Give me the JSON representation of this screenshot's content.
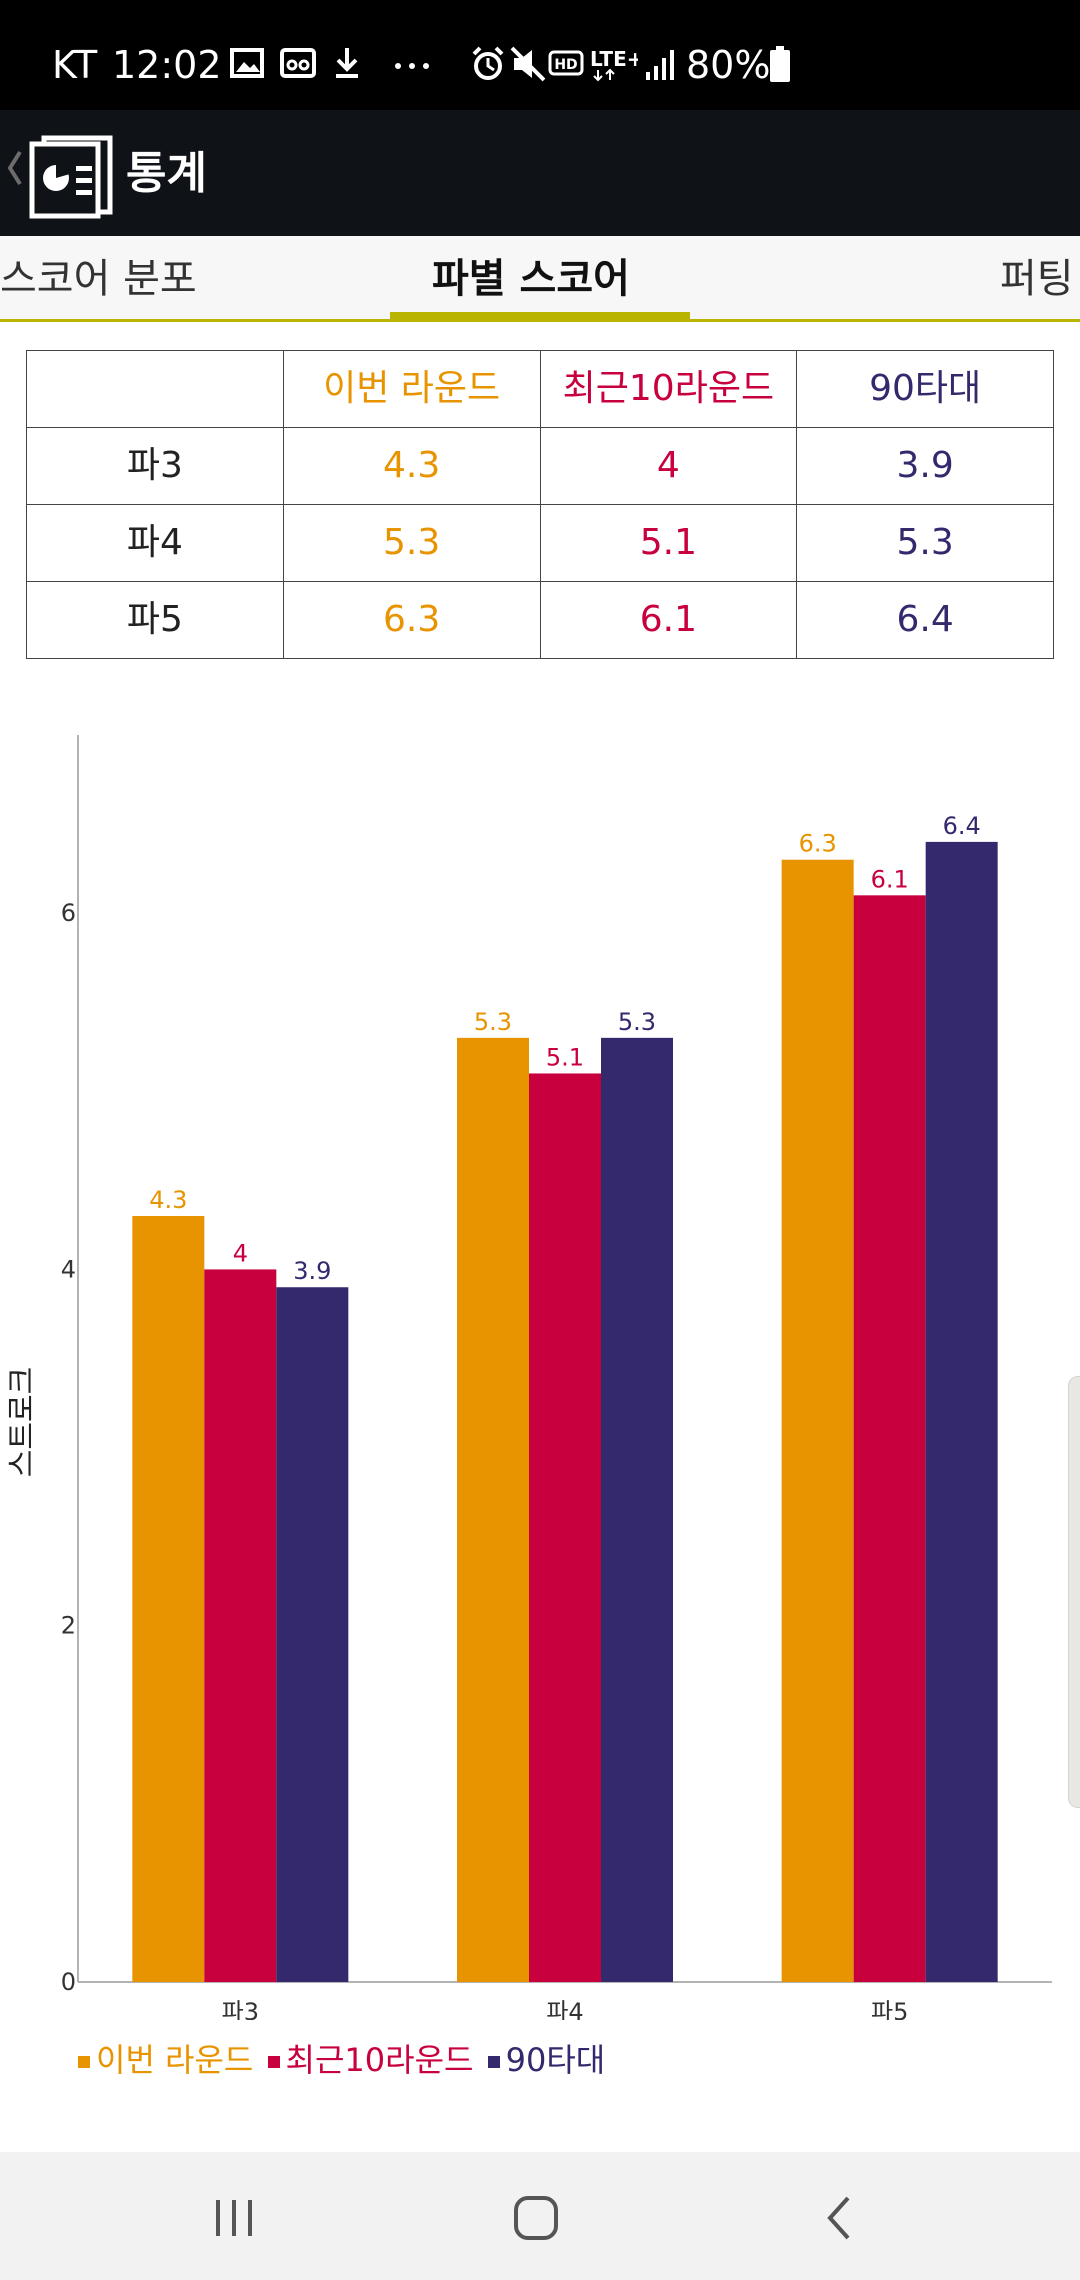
{
  "status_bar": {
    "carrier": "KT",
    "time": "12:02",
    "battery_percent": "80%",
    "icons": [
      "image-icon",
      "voicemail-icon",
      "download-icon",
      "more-dots-icon",
      "alarm-icon",
      "mute-icon",
      "hd-icon",
      "lte-plus-icon",
      "signal-icon",
      "battery-icon"
    ]
  },
  "app_bar": {
    "title": "통계",
    "icons": [
      "back-chevron-icon",
      "statistics-logo-icon"
    ]
  },
  "tabs": [
    {
      "label": "스코어 분포",
      "selected": false
    },
    {
      "label": "파별 스코어",
      "selected": true
    },
    {
      "label": "퍼팅",
      "selected": false
    }
  ],
  "table": {
    "headers": [
      "",
      "이번 라운드",
      "최근10라운드",
      "90타대"
    ],
    "rows": [
      {
        "label": "파3",
        "this_round": "4.3",
        "recent10": "4",
        "ninety": "3.9"
      },
      {
        "label": "파4",
        "this_round": "5.3",
        "recent10": "5.1",
        "ninety": "5.3"
      },
      {
        "label": "파5",
        "this_round": "6.3",
        "recent10": "6.1",
        "ninety": "6.4"
      }
    ]
  },
  "chart_data": {
    "type": "bar",
    "categories": [
      "파3",
      "파4",
      "파5"
    ],
    "series": [
      {
        "name": "이번 라운드",
        "values": [
          4.3,
          5.3,
          6.3
        ],
        "color": "#e89400"
      },
      {
        "name": "최근10라운드",
        "values": [
          4,
          5.1,
          6.1
        ],
        "color": "#c8003e"
      },
      {
        "name": "90타대",
        "values": [
          3.9,
          5.3,
          6.4
        ],
        "color": "#35296e"
      }
    ],
    "data_labels": [
      [
        "4.3",
        "5.3",
        "6.3"
      ],
      [
        "4",
        "5.1",
        "6.1"
      ],
      [
        "3.9",
        "5.3",
        "6.4"
      ]
    ],
    "ylabel": "스트로크",
    "yticks": [
      0,
      2,
      4,
      6
    ],
    "ylim": [
      0,
      7
    ],
    "grid": false,
    "legend_position": "bottom-left"
  },
  "colors": {
    "this_round": "#e89400",
    "recent10": "#c8003e",
    "ninety": "#35296e",
    "tab_accent": "#b8b400"
  },
  "nav_bar": {
    "buttons": [
      "recent-apps-icon",
      "home-icon",
      "back-icon"
    ]
  }
}
